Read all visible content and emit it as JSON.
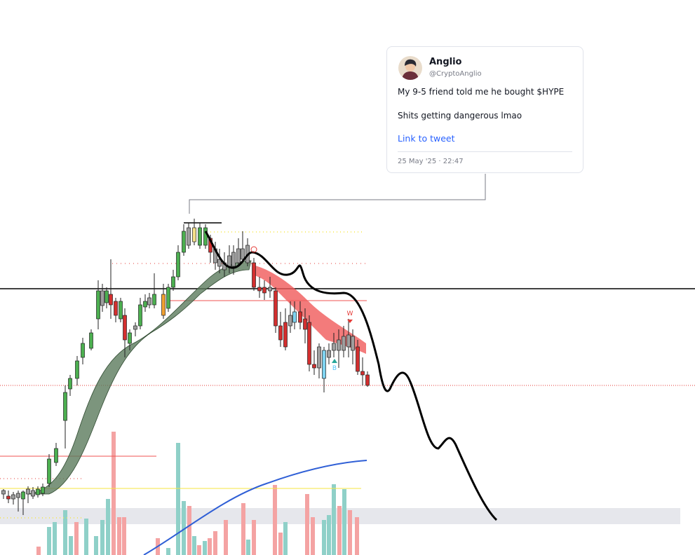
{
  "tweet": {
    "name": "Anglio",
    "handle": "@CryptoAnglio",
    "lines": [
      "My 9-5 friend told me he bought $HYPE",
      "Shits getting dangerous lmao"
    ],
    "link": "Link to tweet",
    "date": "25 May '25 · 22:47"
  },
  "chart_labels": {
    "sell": "W",
    "buy": "B"
  }
}
